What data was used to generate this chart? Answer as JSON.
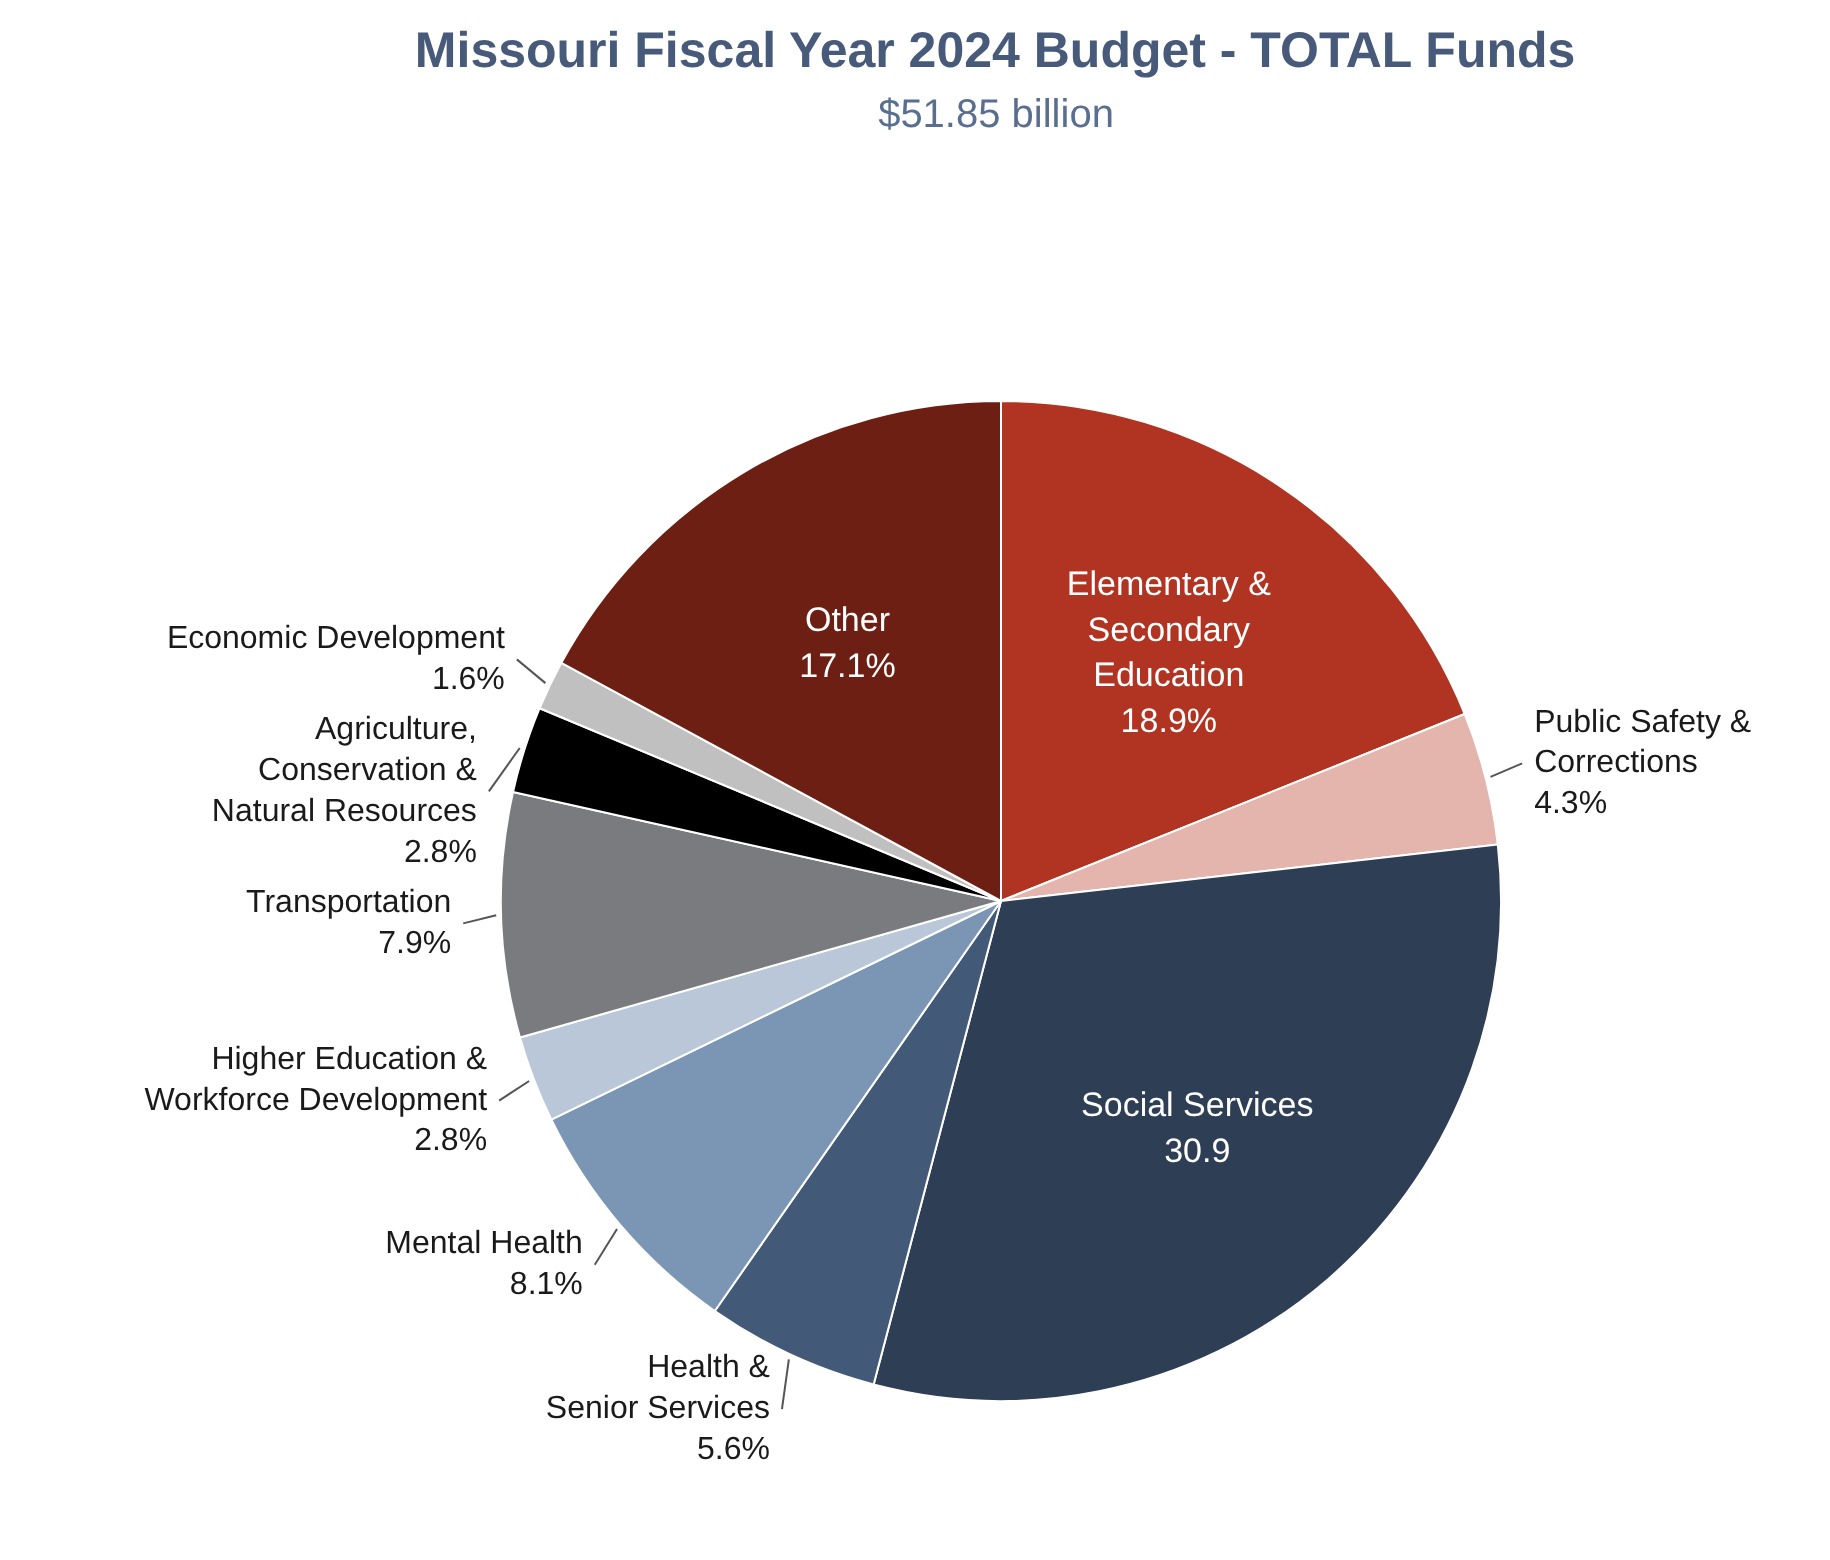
{
  "chart_data": {
    "type": "pie",
    "title": "Missouri Fiscal Year 2024 Budget - TOTAL Funds",
    "subtitle": "$51.85 billion",
    "categories": [
      "Elementary &\nSecondary\nEducation",
      "Public Safety &\nCorrections",
      "Social Services",
      "Health &\nSenior Services",
      "Mental Health",
      "Higher Education &\nWorkforce Development",
      "Transportation",
      "Agriculture,\nConservation &\nNatural Resources",
      "Economic Development",
      "Other"
    ],
    "values": [
      18.9,
      4.3,
      30.9,
      5.6,
      8.1,
      2.8,
      7.9,
      2.8,
      1.6,
      17.1
    ],
    "value_labels": [
      "18.9%",
      "4.3%",
      "30.9",
      "5.6%",
      "8.1%",
      "2.8%",
      "7.9%",
      "2.8%",
      "1.6%",
      "17.1%"
    ],
    "colors": [
      "#b03421",
      "#e3b5ad",
      "#2d3e55",
      "#435978",
      "#7b96b5",
      "#b9c7d8",
      "#7a7b7e",
      "#000000",
      "#c0c0c0",
      "#6e1f14"
    ]
  }
}
